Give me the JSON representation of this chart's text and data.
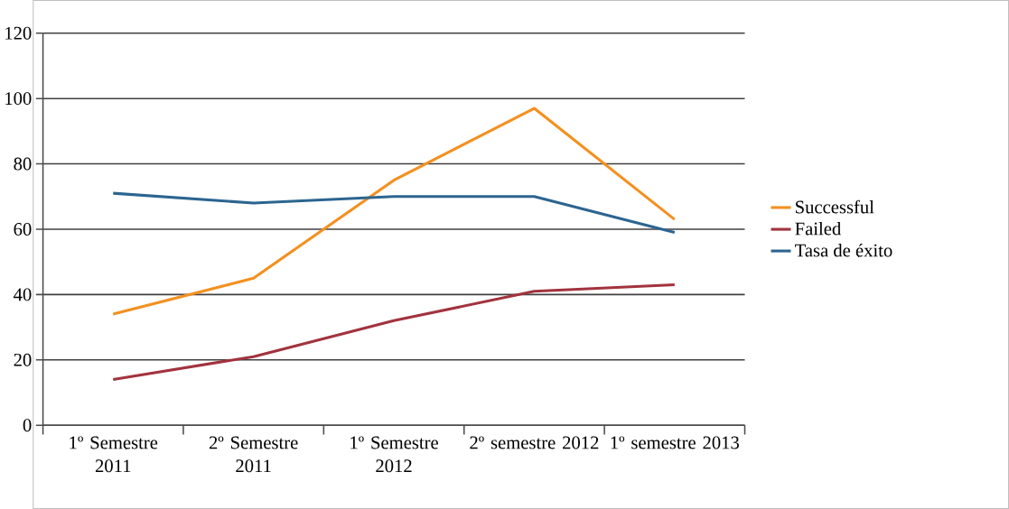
{
  "chart_data": {
    "type": "line",
    "categories": [
      "1º Semestre 2011",
      "2º Semestre 2011",
      "1º Semestre 2012",
      "2º semestre 2012",
      "1º semestre 2013"
    ],
    "series": [
      {
        "name": "Successful",
        "color": "#f39020",
        "values": [
          34,
          45,
          75,
          97,
          63
        ]
      },
      {
        "name": "Failed",
        "color": "#a2333e",
        "values": [
          14,
          21,
          32,
          41,
          43
        ]
      },
      {
        "name": "Tasa de éxito",
        "color": "#2c6590",
        "values": [
          71,
          68,
          70,
          70,
          59
        ]
      }
    ],
    "ylim": [
      0,
      120
    ],
    "yticks": [
      0,
      20,
      40,
      60,
      80,
      100,
      120
    ],
    "grid": "y",
    "legend": "right",
    "marker": "none",
    "line_style": "solid"
  }
}
